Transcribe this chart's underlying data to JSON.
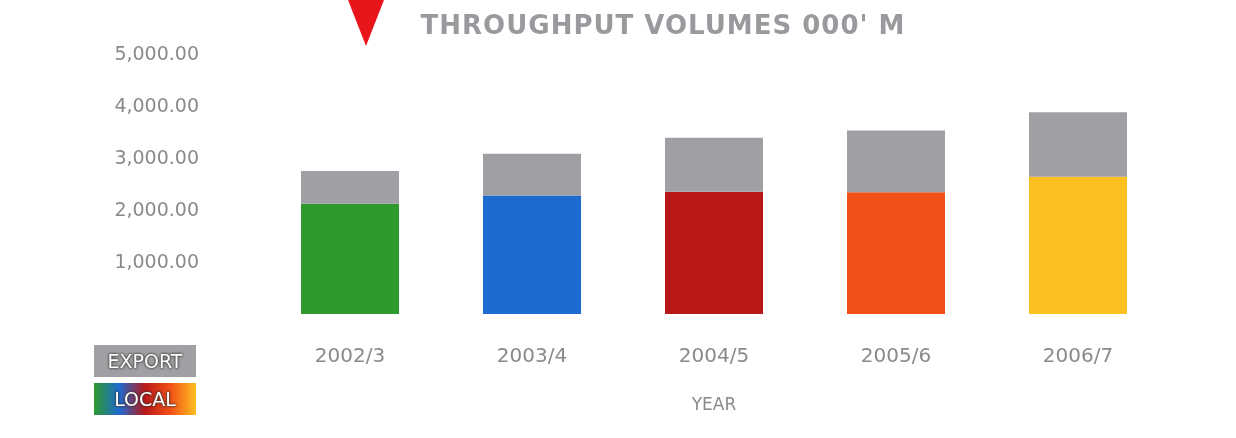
{
  "chart_data": {
    "type": "bar",
    "title": "THROUGHPUT VOLUMES 000' M",
    "xlabel": "YEAR",
    "categories": [
      "2002/3",
      "2003/4",
      "2004/5",
      "2005/6",
      "2006/7"
    ],
    "stacked": true,
    "series": [
      {
        "name": "LOCAL",
        "colors": [
          "#2e9a2e",
          "#1e6ad0",
          "#b81818",
          "#f25016",
          "#fcc020"
        ],
        "values": [
          2120,
          2280,
          2350,
          2340,
          2640
        ]
      },
      {
        "name": "EXPORT",
        "color": "#a0a0a4",
        "values": [
          630,
          800,
          1040,
          1190,
          1240
        ]
      }
    ],
    "ylim": [
      0,
      5000
    ],
    "yticks": [
      {
        "value": 1000,
        "label": "1,000.00"
      },
      {
        "value": 2000,
        "label": "2,000.00"
      },
      {
        "value": 3000,
        "label": "3,000.00"
      },
      {
        "value": 4000,
        "label": "4,000.00"
      },
      {
        "value": 5000,
        "label": "5,000.00"
      }
    ],
    "grid": false,
    "legend": "bottom left"
  }
}
